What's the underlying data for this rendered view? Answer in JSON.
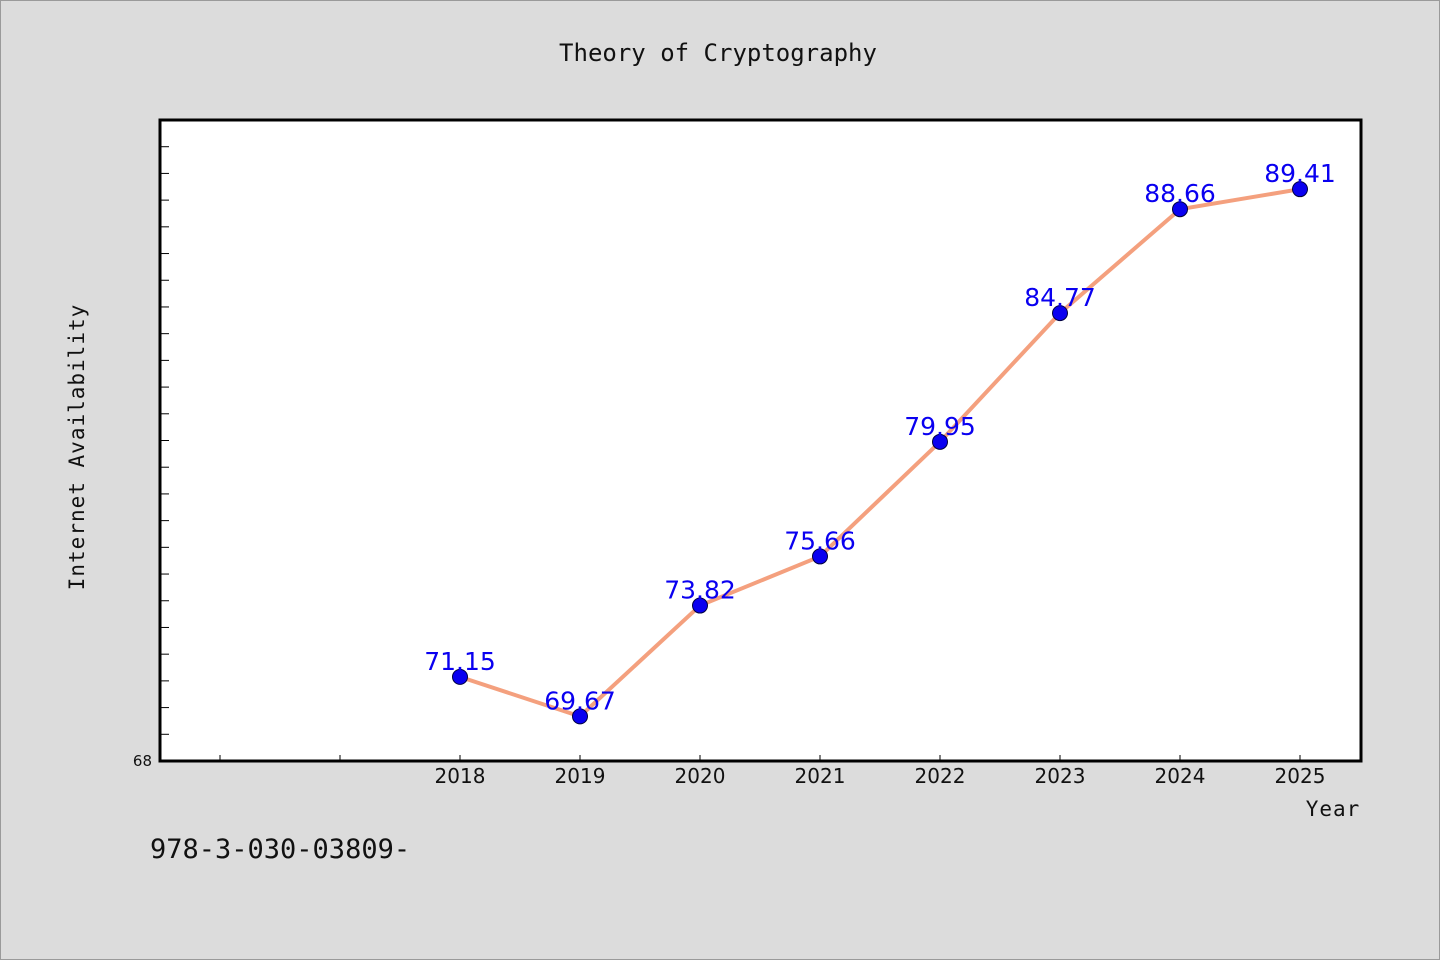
{
  "footnote": "978-3-030-03809-",
  "chart_data": {
    "type": "line",
    "title": "Theory of Cryptography",
    "xlabel": "Year",
    "ylabel": "Internet Availability",
    "categories": [
      "2018",
      "2019",
      "2020",
      "2021",
      "2022",
      "2023",
      "2024",
      "2025"
    ],
    "values": [
      71.15,
      69.67,
      73.82,
      75.66,
      79.95,
      84.77,
      88.66,
      89.41
    ],
    "data_labels": [
      "71.15",
      "69.67",
      "73.82",
      "75.66",
      "79.95",
      "84.77",
      "88.66",
      "89.41"
    ],
    "ylim": [
      68,
      92
    ],
    "yticks_labeled": [
      "68"
    ],
    "grid": false,
    "legend": "none",
    "line_color": "#f4a07e",
    "marker_color": "#0a00f0",
    "label_color": "#0a00f0"
  }
}
